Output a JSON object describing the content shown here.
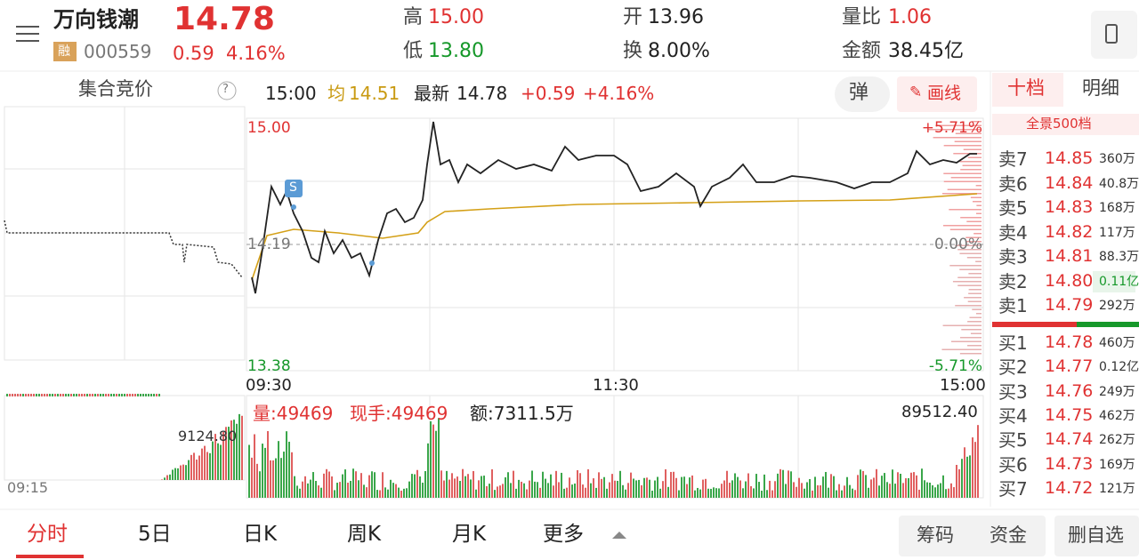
{
  "header": {
    "name": "万向钱潮",
    "price": "14.78",
    "tag": "融",
    "code": "000559",
    "change": "0.59",
    "pct": "4.16%",
    "stats": [
      {
        "label": "高",
        "value": "15.00"
      },
      {
        "label": "低",
        "value": "13.80"
      },
      {
        "label": "开",
        "value": "13.96"
      },
      {
        "label": "换",
        "value": "8.00%"
      },
      {
        "label": "量比",
        "value": "1.06"
      },
      {
        "label": "金额",
        "value": "38.45亿"
      }
    ]
  },
  "auction": {
    "title": "集合竞价",
    "help": "?",
    "time": "09:15",
    "volume": "9124.80"
  },
  "info": {
    "time": "15:00",
    "avg_label": "均",
    "avg": "14.51",
    "latest_label": "最新",
    "latest": "14.78",
    "change": "+0.59",
    "pct": "+4.16%"
  },
  "buttons": {
    "popup": "弹",
    "draw": "画线"
  },
  "axis": {
    "high": "15.00",
    "mid": "14.19",
    "low": "13.38",
    "pct_high": "+5.71%",
    "pct_mid": "0.00%",
    "pct_low": "-5.71%",
    "times": [
      "09:30",
      "11:30",
      "15:00"
    ],
    "marker": "S"
  },
  "volume": {
    "vol": "量:49469",
    "hand": "现手:49469",
    "amount": "额:7311.5万",
    "max": "89512.40"
  },
  "orderbook": {
    "tabs": [
      "十档",
      "明细"
    ],
    "panorama": "全景500档",
    "asks": [
      {
        "label": "卖7",
        "price": "14.85",
        "vol": "360万"
      },
      {
        "label": "卖6",
        "price": "14.84",
        "vol": "40.8万"
      },
      {
        "label": "卖5",
        "price": "14.83",
        "vol": "168万"
      },
      {
        "label": "卖4",
        "price": "14.82",
        "vol": "117万"
      },
      {
        "label": "卖3",
        "price": "14.81",
        "vol": "88.3万"
      },
      {
        "label": "卖2",
        "price": "14.80",
        "vol": "0.11亿"
      },
      {
        "label": "卖1",
        "price": "14.79",
        "vol": "292万"
      }
    ],
    "bids": [
      {
        "label": "买1",
        "price": "14.78",
        "vol": "460万"
      },
      {
        "label": "买2",
        "price": "14.77",
        "vol": "0.12亿"
      },
      {
        "label": "买3",
        "price": "14.76",
        "vol": "249万"
      },
      {
        "label": "买4",
        "price": "14.75",
        "vol": "462万"
      },
      {
        "label": "买5",
        "price": "14.74",
        "vol": "262万"
      },
      {
        "label": "买6",
        "price": "14.73",
        "vol": "169万"
      },
      {
        "label": "买7",
        "price": "14.72",
        "vol": "121万"
      }
    ]
  },
  "tabs": [
    "分时",
    "5日",
    "日K",
    "周K",
    "月K",
    "更多"
  ],
  "actions": [
    "筹码",
    "资金",
    "删自选"
  ]
}
